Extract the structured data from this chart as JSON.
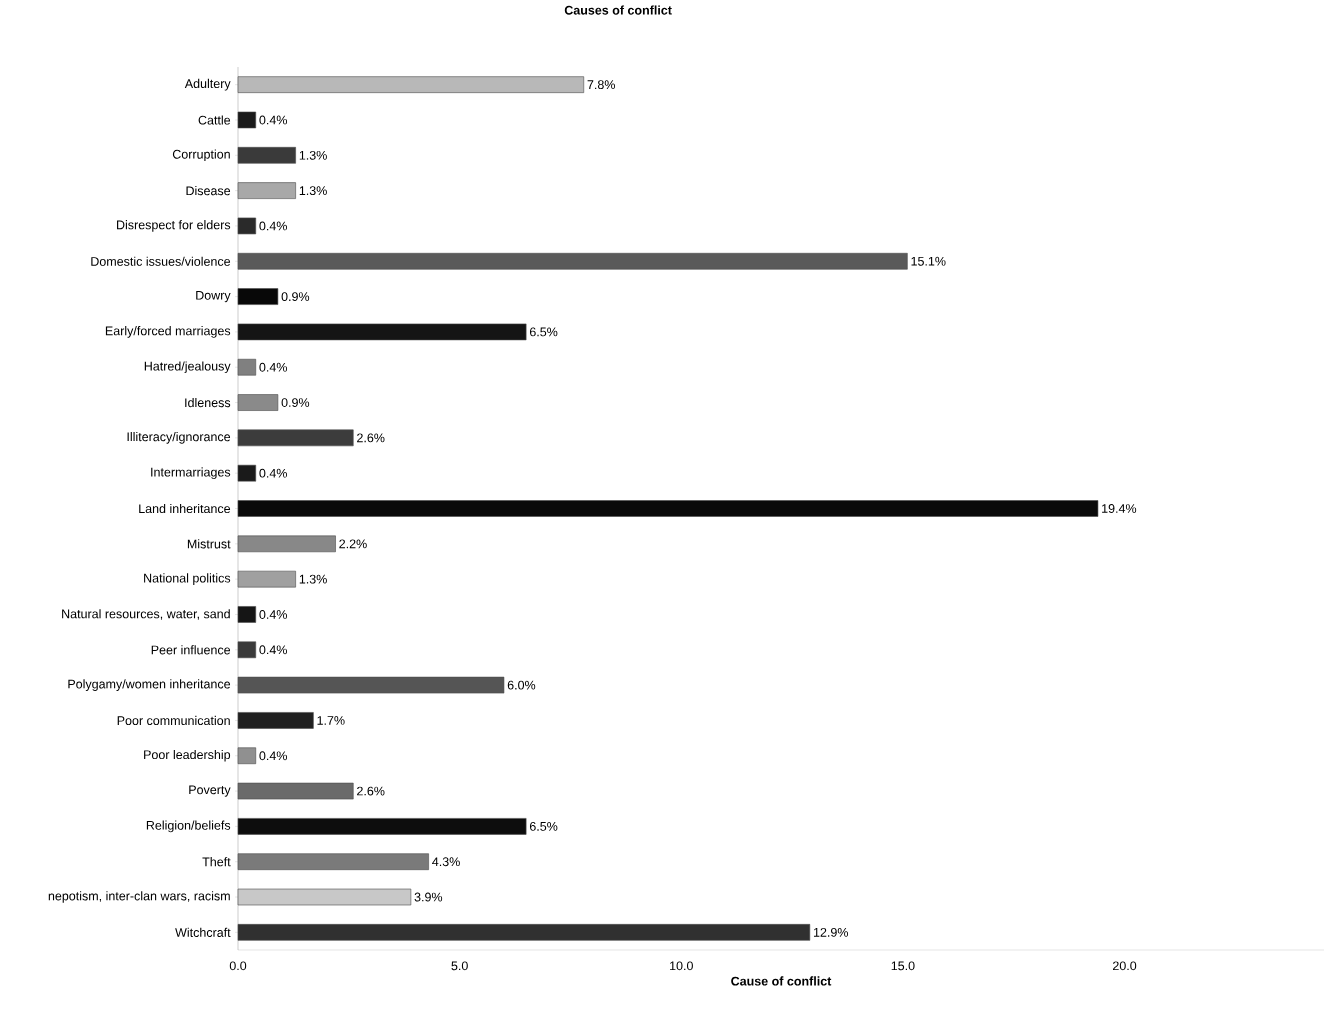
{
  "chart_data": {
    "type": "bar",
    "orientation": "horizontal",
    "title": "Causes of conflict",
    "xlabel": "Cause of conflict",
    "categories": [
      "Adultery",
      "Cattle",
      "Corruption",
      "Disease",
      "Disrespect for elders",
      "Domestic issues/violence",
      "Dowry",
      "Early/forced marriages",
      "Hatred/jealousy",
      "Idleness",
      "Illiteracy/ignorance",
      "Intermarriages",
      "Land inheritance",
      "Mistrust",
      "National politics",
      "Natural resources, water, sand",
      "Peer influence",
      "Polygamy/women inheritance",
      "Poor communication",
      "Poor leadership",
      "Poverty",
      "Religion/beliefs",
      "Theft",
      "nepotism, inter-clan wars, racism",
      "Witchcraft"
    ],
    "values": [
      7.8,
      0.4,
      1.3,
      1.3,
      0.4,
      15.1,
      0.9,
      6.5,
      0.4,
      0.9,
      2.6,
      0.4,
      19.4,
      2.2,
      1.3,
      0.4,
      0.4,
      6.0,
      1.7,
      0.4,
      2.6,
      6.5,
      4.3,
      3.9,
      12.9
    ],
    "value_labels": [
      "7.8%",
      "0.4%",
      "1.3%",
      "1.3%",
      "0.4%",
      "15.1%",
      "0.9%",
      "6.5%",
      "0.4%",
      "0.9%",
      "2.6%",
      "0.4%",
      "19.4%",
      "2.2%",
      "1.3%",
      "0.4%",
      "0.4%",
      "6.0%",
      "1.7%",
      "0.4%",
      "2.6%",
      "6.5%",
      "4.3%",
      "3.9%",
      "12.9%"
    ],
    "colors": [
      "#b8b8b8",
      "#1a1a1a",
      "#3a3a3a",
      "#a8a8a8",
      "#2a2a2a",
      "#5a5a5a",
      "#080808",
      "#151515",
      "#808080",
      "#8a8a8a",
      "#3c3c3c",
      "#1a1a1a",
      "#0a0a0a",
      "#888888",
      "#a0a0a0",
      "#151515",
      "#3a3a3a",
      "#555555",
      "#202020",
      "#909090",
      "#6a6a6a",
      "#0d0d0d",
      "#7a7a7a",
      "#c8c8c8",
      "#303030"
    ],
    "xlim": [
      0,
      24.5
    ],
    "xticks": [
      {
        "value": 0,
        "label": "0.0"
      },
      {
        "value": 5,
        "label": "5.0"
      },
      {
        "value": 10,
        "label": "10.0"
      },
      {
        "value": 15,
        "label": "15.0"
      },
      {
        "value": 20,
        "label": "20.0"
      }
    ],
    "grid": false
  }
}
